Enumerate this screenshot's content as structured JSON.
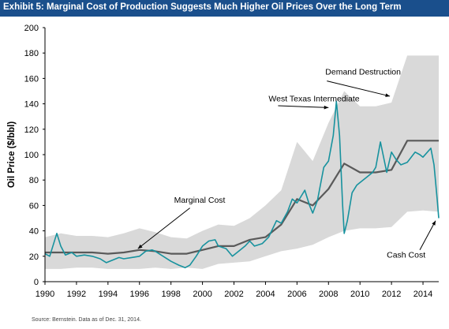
{
  "title": "Exhibit 5: Marginal Cost of Production Suggests Much Higher Oil Prices Over the Long Term",
  "source": "Source: Bernstein. Data as of Dec. 31, 2014.",
  "colors": {
    "title_bg": "#1a4f8c",
    "band": "#d9d9d9",
    "marginal_cost": "#5a5a5a",
    "wti": "#17929e"
  },
  "chart_data": {
    "type": "area",
    "ylabel": "Oil Price ($/bbl)",
    "xlim": [
      1990,
      2015
    ],
    "ylim": [
      0,
      200
    ],
    "x_ticks": [
      "1990",
      "1992",
      "1994",
      "1996",
      "1998",
      "2000",
      "2002",
      "2004",
      "2006",
      "2008",
      "2010",
      "2012",
      "2014"
    ],
    "y_ticks": [
      "0",
      "20",
      "40",
      "60",
      "80",
      "100",
      "120",
      "140",
      "160",
      "180",
      "200"
    ],
    "grid": false,
    "series": [
      {
        "name": "Demand Destruction",
        "kind": "band_upper",
        "x": [
          1990,
          1991,
          1992,
          1993,
          1994,
          1995,
          1996,
          1997,
          1998,
          1999,
          2000,
          2001,
          2002,
          2003,
          2004,
          2005,
          2006,
          2007,
          2008,
          2009,
          2010,
          2011,
          2012,
          2013,
          2014,
          2015
        ],
        "values": [
          35,
          38,
          36,
          36,
          35,
          38,
          42,
          39,
          35,
          34,
          40,
          45,
          44,
          50,
          60,
          72,
          110,
          95,
          125,
          150,
          138,
          138,
          141,
          178,
          178,
          178
        ]
      },
      {
        "name": "Cash Cost",
        "kind": "band_lower",
        "x": [
          1990,
          1991,
          1992,
          1993,
          1994,
          1995,
          1996,
          1997,
          1998,
          1999,
          2000,
          2001,
          2002,
          2003,
          2004,
          2005,
          2006,
          2007,
          2008,
          2009,
          2010,
          2011,
          2012,
          2013,
          2014,
          2015
        ],
        "values": [
          10,
          10,
          11,
          11,
          10,
          10,
          10,
          11,
          10,
          11,
          10,
          14,
          15,
          16,
          20,
          24,
          26,
          29,
          35,
          40,
          42,
          42,
          43,
          55,
          56,
          55
        ]
      },
      {
        "name": "Marginal Cost",
        "kind": "line",
        "x": [
          1990,
          1991,
          1992,
          1993,
          1994,
          1995,
          1996,
          1997,
          1998,
          1999,
          2000,
          2001,
          2002,
          2003,
          2004,
          2005,
          2006,
          2007,
          2008,
          2009,
          2010,
          2011,
          2012,
          2013,
          2014,
          2015
        ],
        "values": [
          23,
          23,
          23,
          23,
          22,
          23,
          25,
          24,
          22,
          22,
          25,
          28,
          28,
          33,
          35,
          45,
          65,
          60,
          73,
          93,
          86,
          86,
          88,
          111,
          111,
          111
        ]
      },
      {
        "name": "West Texas Intermediate",
        "kind": "line",
        "x": [
          1990.0,
          1990.3,
          1990.55,
          1990.75,
          1991.0,
          1991.3,
          1991.7,
          1992.0,
          1992.5,
          1993.0,
          1993.5,
          1993.9,
          1994.3,
          1994.7,
          1995.0,
          1995.5,
          1996.0,
          1996.4,
          1996.8,
          1997.0,
          1997.5,
          1998.0,
          1998.5,
          1998.9,
          1999.2,
          1999.6,
          2000.0,
          2000.4,
          2000.8,
          2001.0,
          2001.5,
          2001.9,
          2002.3,
          2002.7,
          2003.0,
          2003.3,
          2003.8,
          2004.2,
          2004.7,
          2005.0,
          2005.4,
          2005.7,
          2006.0,
          2006.5,
          2006.8,
          2007.0,
          2007.3,
          2007.7,
          2008.0,
          2008.3,
          2008.5,
          2008.7,
          2008.9,
          2009.0,
          2009.2,
          2009.5,
          2009.8,
          2010.0,
          2010.4,
          2010.8,
          2011.0,
          2011.3,
          2011.7,
          2012.0,
          2012.3,
          2012.6,
          2013.0,
          2013.5,
          2013.8,
          2014.0,
          2014.5,
          2014.7,
          2014.9,
          2015.0
        ],
        "values": [
          22,
          20,
          30,
          38,
          28,
          21,
          23,
          20,
          21,
          20,
          18,
          15,
          17,
          19,
          18,
          19,
          20,
          24,
          25,
          24,
          20,
          16,
          13,
          11,
          13,
          20,
          28,
          32,
          33,
          28,
          26,
          20,
          24,
          28,
          32,
          28,
          30,
          35,
          48,
          46,
          55,
          65,
          62,
          72,
          60,
          54,
          64,
          90,
          95,
          115,
          142,
          115,
          60,
          38,
          48,
          70,
          76,
          78,
          82,
          86,
          90,
          110,
          86,
          102,
          96,
          92,
          94,
          102,
          100,
          98,
          105,
          92,
          65,
          50
        ]
      }
    ],
    "annotations": [
      "Demand Destruction",
      "West Texas Intermediate",
      "Marginal Cost",
      "Cash Cost"
    ]
  }
}
